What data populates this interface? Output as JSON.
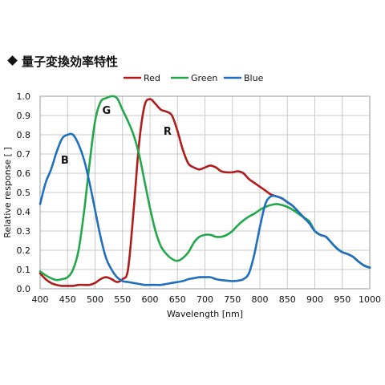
{
  "title": "量子変換効率特性",
  "chart_data": {
    "type": "line",
    "title": "量子変換効率特性",
    "xlabel": "Wavelength [nm]",
    "ylabel": "Relative response [ ]",
    "xlim": [
      400,
      1000
    ],
    "ylim": [
      0,
      1.0
    ],
    "x_ticks": [
      400,
      450,
      500,
      550,
      600,
      650,
      700,
      750,
      800,
      850,
      900,
      950,
      1000
    ],
    "y_ticks": [
      "0.0",
      "0.1",
      "0.2",
      "0.3",
      "0.4",
      "0.5",
      "0.6",
      "0.7",
      "0.8",
      "0.9",
      "1.0"
    ],
    "grid": true,
    "legend_position": "top",
    "annotations": [
      {
        "text": "B",
        "x": 445,
        "y": 0.67
      },
      {
        "text": "G",
        "x": 521,
        "y": 0.93
      },
      {
        "text": "R",
        "x": 632,
        "y": 0.82
      }
    ],
    "series": [
      {
        "name": "Red",
        "color": "#b01c1c",
        "points": [
          [
            400,
            0.08
          ],
          [
            410,
            0.05
          ],
          [
            420,
            0.03
          ],
          [
            430,
            0.02
          ],
          [
            440,
            0.015
          ],
          [
            450,
            0.015
          ],
          [
            460,
            0.015
          ],
          [
            470,
            0.02
          ],
          [
            480,
            0.02
          ],
          [
            490,
            0.02
          ],
          [
            500,
            0.03
          ],
          [
            510,
            0.05
          ],
          [
            520,
            0.06
          ],
          [
            530,
            0.05
          ],
          [
            540,
            0.035
          ],
          [
            550,
            0.05
          ],
          [
            560,
            0.1
          ],
          [
            570,
            0.4
          ],
          [
            580,
            0.75
          ],
          [
            590,
            0.95
          ],
          [
            600,
            0.985
          ],
          [
            610,
            0.96
          ],
          [
            620,
            0.93
          ],
          [
            630,
            0.92
          ],
          [
            640,
            0.9
          ],
          [
            650,
            0.82
          ],
          [
            660,
            0.72
          ],
          [
            670,
            0.65
          ],
          [
            680,
            0.63
          ],
          [
            690,
            0.62
          ],
          [
            700,
            0.63
          ],
          [
            710,
            0.64
          ],
          [
            720,
            0.63
          ],
          [
            730,
            0.61
          ],
          [
            740,
            0.605
          ],
          [
            750,
            0.605
          ],
          [
            760,
            0.61
          ],
          [
            770,
            0.6
          ],
          [
            780,
            0.57
          ],
          [
            790,
            0.55
          ],
          [
            800,
            0.53
          ],
          [
            810,
            0.51
          ],
          [
            820,
            0.49
          ],
          [
            830,
            0.48
          ],
          [
            840,
            0.47
          ],
          [
            850,
            0.45
          ],
          [
            860,
            0.43
          ],
          [
            870,
            0.4
          ],
          [
            880,
            0.37
          ],
          [
            890,
            0.34
          ],
          [
            900,
            0.3
          ],
          [
            910,
            0.28
          ],
          [
            920,
            0.27
          ],
          [
            930,
            0.24
          ],
          [
            940,
            0.21
          ],
          [
            950,
            0.19
          ],
          [
            960,
            0.18
          ],
          [
            970,
            0.165
          ],
          [
            980,
            0.14
          ],
          [
            990,
            0.12
          ],
          [
            1000,
            0.11
          ]
        ]
      },
      {
        "name": "Green",
        "color": "#22a84a",
        "points": [
          [
            400,
            0.09
          ],
          [
            410,
            0.07
          ],
          [
            420,
            0.055
          ],
          [
            430,
            0.045
          ],
          [
            440,
            0.05
          ],
          [
            450,
            0.06
          ],
          [
            460,
            0.1
          ],
          [
            470,
            0.2
          ],
          [
            480,
            0.4
          ],
          [
            490,
            0.65
          ],
          [
            500,
            0.87
          ],
          [
            510,
            0.97
          ],
          [
            520,
            0.99
          ],
          [
            530,
            1.0
          ],
          [
            540,
            0.99
          ],
          [
            550,
            0.93
          ],
          [
            560,
            0.87
          ],
          [
            570,
            0.8
          ],
          [
            580,
            0.7
          ],
          [
            590,
            0.56
          ],
          [
            600,
            0.42
          ],
          [
            610,
            0.3
          ],
          [
            620,
            0.22
          ],
          [
            630,
            0.18
          ],
          [
            640,
            0.155
          ],
          [
            650,
            0.145
          ],
          [
            660,
            0.16
          ],
          [
            670,
            0.19
          ],
          [
            680,
            0.24
          ],
          [
            690,
            0.27
          ],
          [
            700,
            0.28
          ],
          [
            710,
            0.28
          ],
          [
            720,
            0.27
          ],
          [
            730,
            0.27
          ],
          [
            740,
            0.28
          ],
          [
            750,
            0.3
          ],
          [
            760,
            0.33
          ],
          [
            770,
            0.355
          ],
          [
            780,
            0.375
          ],
          [
            790,
            0.39
          ],
          [
            800,
            0.41
          ],
          [
            810,
            0.425
          ],
          [
            820,
            0.435
          ],
          [
            830,
            0.44
          ],
          [
            840,
            0.435
          ],
          [
            850,
            0.425
          ],
          [
            860,
            0.41
          ],
          [
            870,
            0.39
          ],
          [
            880,
            0.37
          ],
          [
            890,
            0.35
          ],
          [
            900,
            0.3
          ],
          [
            910,
            0.28
          ],
          [
            920,
            0.27
          ],
          [
            930,
            0.24
          ],
          [
            940,
            0.21
          ],
          [
            950,
            0.19
          ],
          [
            960,
            0.18
          ],
          [
            970,
            0.165
          ],
          [
            980,
            0.14
          ],
          [
            990,
            0.12
          ],
          [
            1000,
            0.11
          ]
        ]
      },
      {
        "name": "Blue",
        "color": "#1f6fbf",
        "points": [
          [
            400,
            0.44
          ],
          [
            410,
            0.55
          ],
          [
            420,
            0.62
          ],
          [
            430,
            0.71
          ],
          [
            440,
            0.78
          ],
          [
            450,
            0.8
          ],
          [
            460,
            0.8
          ],
          [
            470,
            0.75
          ],
          [
            480,
            0.67
          ],
          [
            490,
            0.55
          ],
          [
            500,
            0.41
          ],
          [
            510,
            0.27
          ],
          [
            520,
            0.16
          ],
          [
            530,
            0.1
          ],
          [
            540,
            0.06
          ],
          [
            550,
            0.04
          ],
          [
            560,
            0.035
          ],
          [
            570,
            0.03
          ],
          [
            580,
            0.025
          ],
          [
            590,
            0.02
          ],
          [
            600,
            0.02
          ],
          [
            610,
            0.02
          ],
          [
            620,
            0.02
          ],
          [
            630,
            0.025
          ],
          [
            640,
            0.03
          ],
          [
            650,
            0.035
          ],
          [
            660,
            0.04
          ],
          [
            670,
            0.05
          ],
          [
            680,
            0.055
          ],
          [
            690,
            0.06
          ],
          [
            700,
            0.06
          ],
          [
            710,
            0.06
          ],
          [
            720,
            0.05
          ],
          [
            730,
            0.045
          ],
          [
            740,
            0.042
          ],
          [
            750,
            0.04
          ],
          [
            760,
            0.042
          ],
          [
            770,
            0.05
          ],
          [
            780,
            0.08
          ],
          [
            790,
            0.18
          ],
          [
            800,
            0.32
          ],
          [
            810,
            0.44
          ],
          [
            820,
            0.48
          ],
          [
            830,
            0.48
          ],
          [
            840,
            0.47
          ],
          [
            850,
            0.45
          ],
          [
            860,
            0.43
          ],
          [
            870,
            0.4
          ],
          [
            880,
            0.37
          ],
          [
            890,
            0.34
          ],
          [
            900,
            0.3
          ],
          [
            910,
            0.28
          ],
          [
            920,
            0.27
          ],
          [
            930,
            0.24
          ],
          [
            940,
            0.21
          ],
          [
            950,
            0.19
          ],
          [
            960,
            0.18
          ],
          [
            970,
            0.165
          ],
          [
            980,
            0.14
          ],
          [
            990,
            0.12
          ],
          [
            1000,
            0.11
          ]
        ]
      }
    ]
  }
}
